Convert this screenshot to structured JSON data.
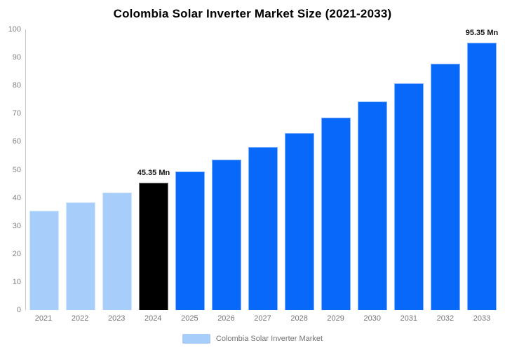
{
  "title": "Colombia Solar Inverter Market Size (2021-2033)",
  "legend": {
    "label": "Colombia Solar Inverter Market",
    "swatch_color": "#A7CEFA"
  },
  "colors": {
    "light_blue": "#A7CEFA",
    "blue": "#0768FA",
    "black": "#000000",
    "axis_text": "#808080",
    "legend_text": "#737373",
    "axis_line": "#c9c9c9"
  },
  "chart_data": {
    "type": "bar",
    "title": "Colombia Solar Inverter Market Size (2021-2033)",
    "categories": [
      "2021",
      "2022",
      "2023",
      "2024",
      "2025",
      "2026",
      "2027",
      "2028",
      "2029",
      "2030",
      "2031",
      "2032",
      "2033"
    ],
    "values": [
      35.4,
      38.5,
      41.8,
      45.35,
      49.3,
      53.5,
      58.1,
      63.1,
      68.5,
      74.4,
      80.8,
      87.7,
      95.35
    ],
    "unit": "Mn",
    "bar_colors": [
      "#A7CEFA",
      "#A7CEFA",
      "#A7CEFA",
      "#000000",
      "#0768FA",
      "#0768FA",
      "#0768FA",
      "#0768FA",
      "#0768FA",
      "#0768FA",
      "#0768FA",
      "#0768FA",
      "#0768FA"
    ],
    "annotations": [
      {
        "category": "2024",
        "text": "45.35 Mn"
      },
      {
        "category": "2033",
        "text": "95.35 Mn"
      }
    ],
    "xlabel": "",
    "ylabel": "",
    "ylim": [
      0,
      100
    ],
    "yticks": [
      0,
      10,
      20,
      30,
      40,
      50,
      60,
      70,
      80,
      90,
      100
    ],
    "grid": false,
    "legend_position": "bottom-center",
    "series": [
      {
        "name": "Colombia Solar Inverter Market",
        "values": [
          35.4,
          38.5,
          41.8,
          45.35,
          49.3,
          53.5,
          58.1,
          63.1,
          68.5,
          74.4,
          80.8,
          87.7,
          95.35
        ]
      }
    ]
  }
}
